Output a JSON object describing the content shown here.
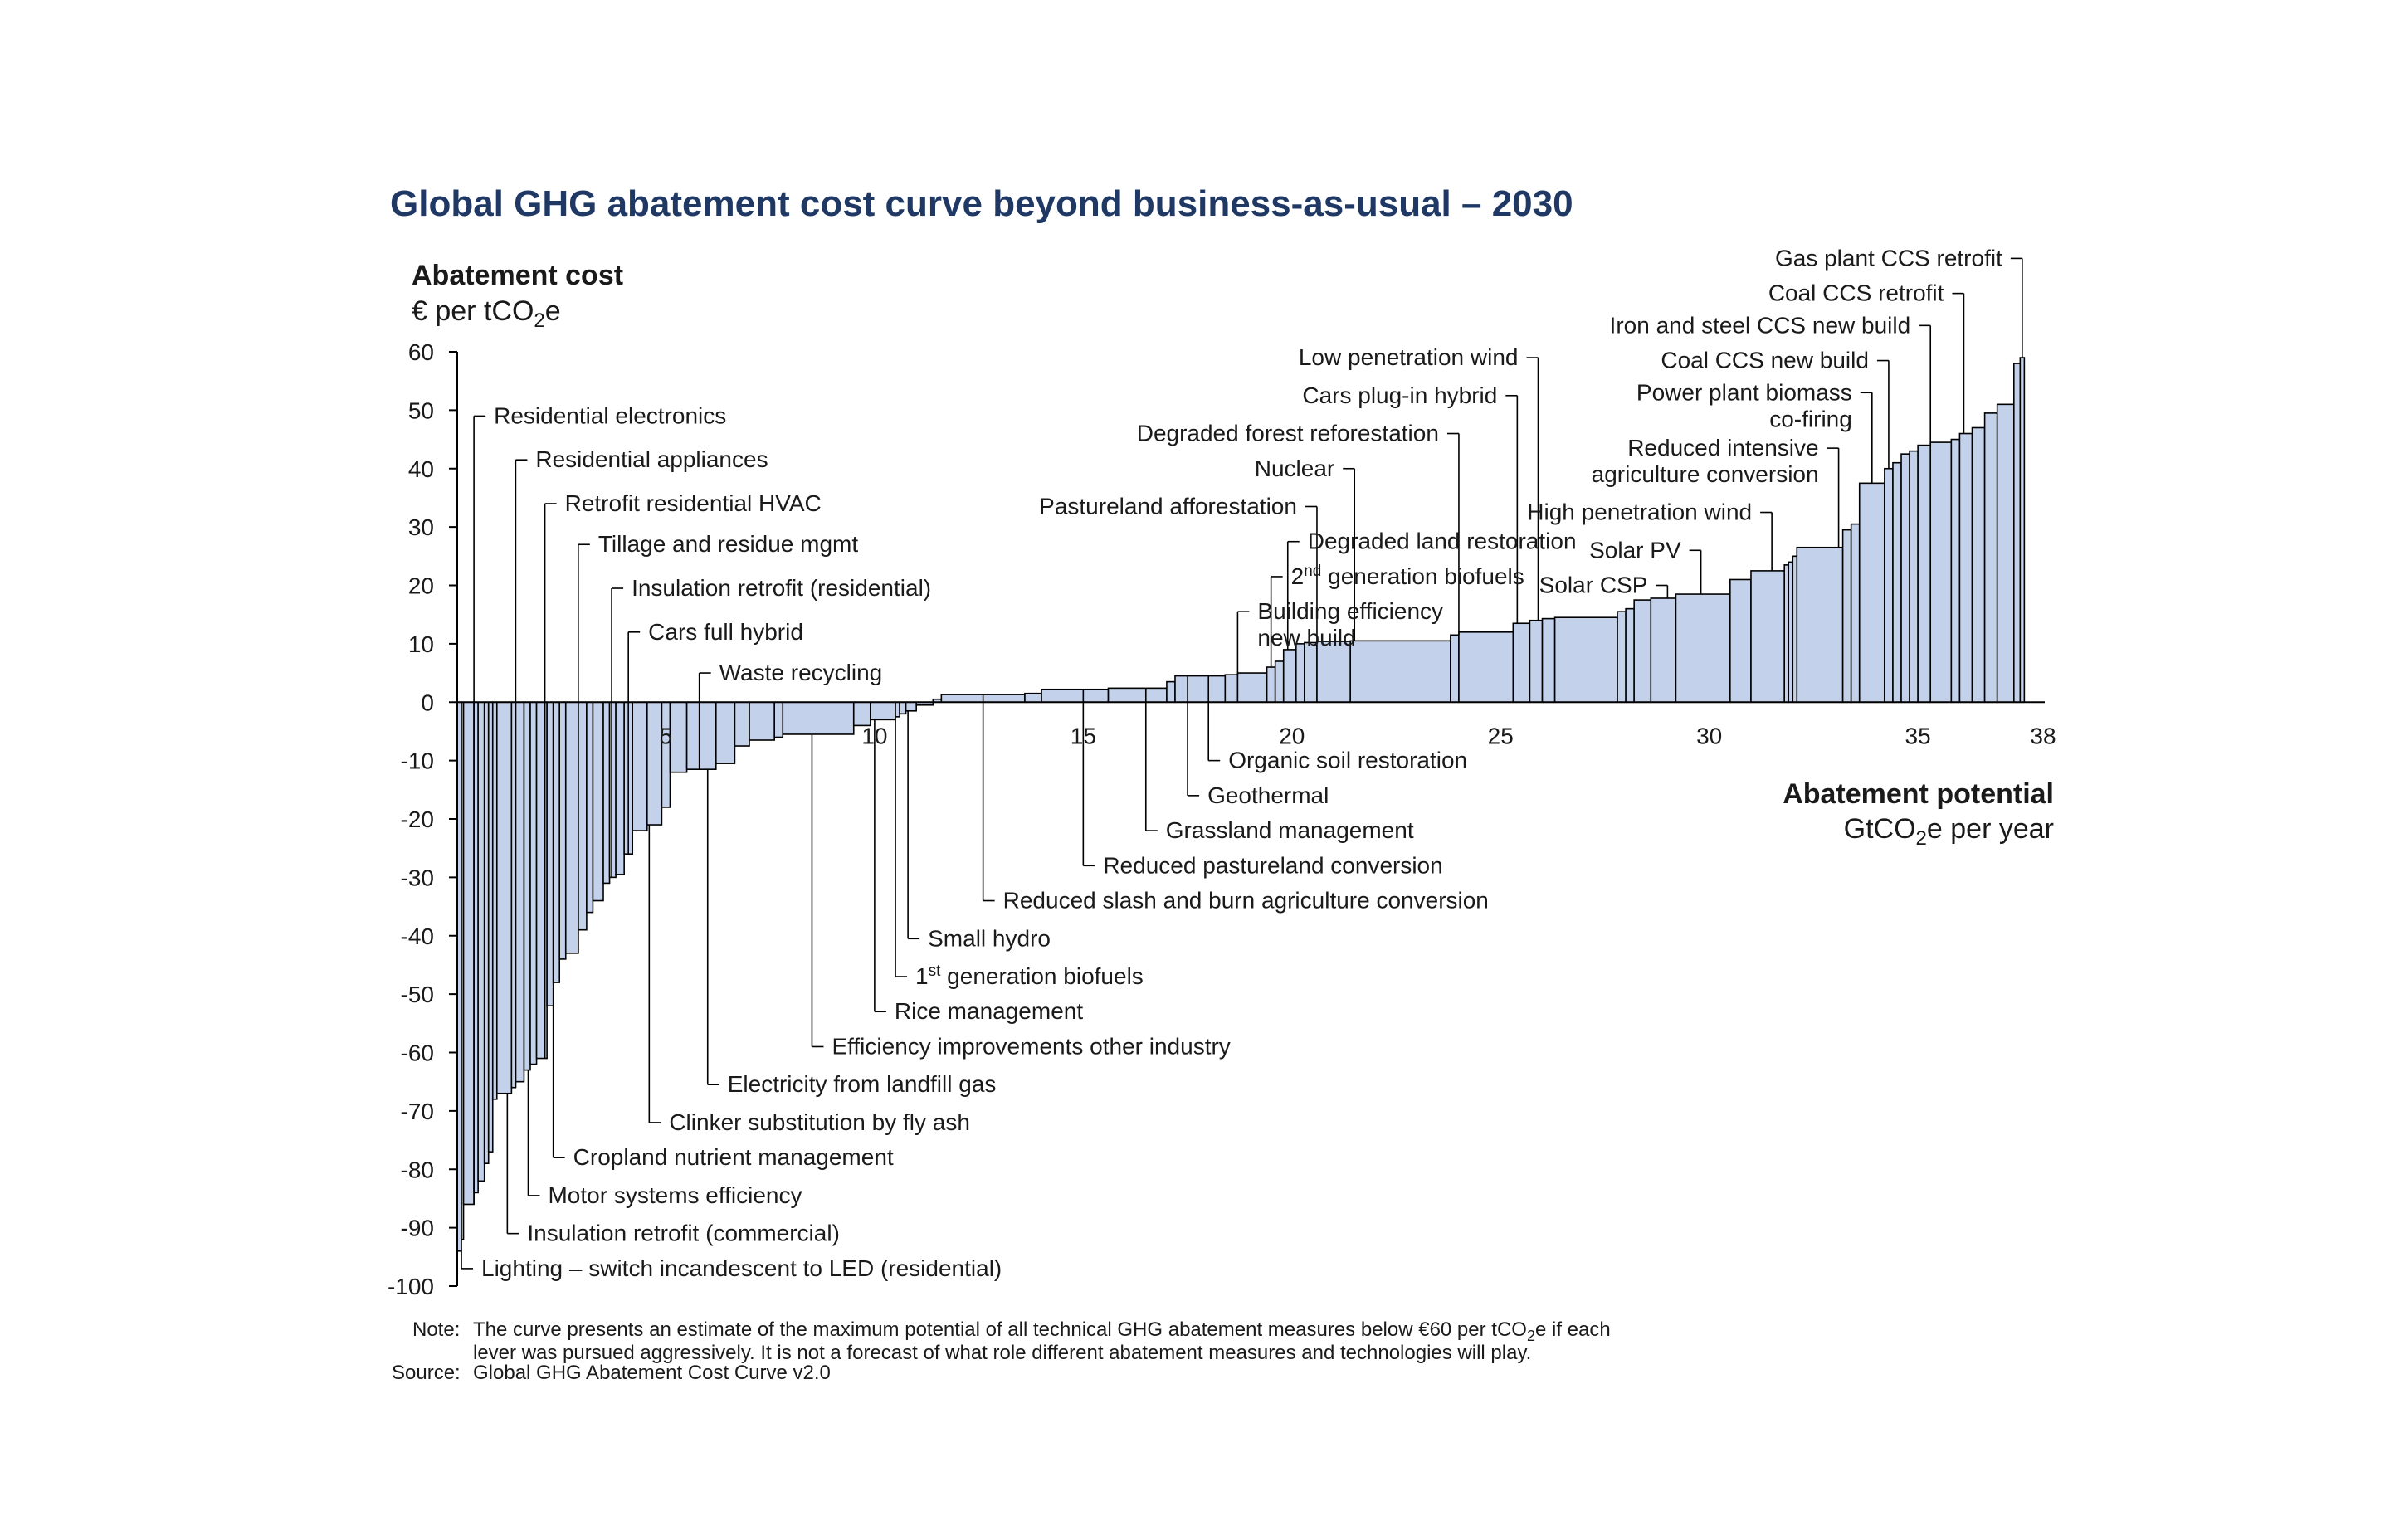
{
  "title": "Global GHG abatement cost curve beyond business-as-usual – 2030",
  "colors": {
    "title": "#1f3864",
    "bar_fill": "#c4d1ea",
    "bar_stroke": "#000000"
  },
  "chart_data": {
    "type": "bar",
    "chart_variant": "marginal abatement cost curve (variable-width bars)",
    "y_axis": {
      "label_bold": "Abatement cost",
      "unit_prefix": "€ per tCO",
      "unit_sub": "2",
      "unit_suffix": "e",
      "ylim": [
        -100,
        60
      ],
      "ticks": [
        60,
        50,
        40,
        30,
        20,
        10,
        0,
        -10,
        -20,
        -30,
        -40,
        -50,
        -60,
        -70,
        -80,
        -90,
        -100
      ]
    },
    "x_axis": {
      "label_bold": "Abatement potential",
      "unit_prefix": "GtCO",
      "unit_sub": "2",
      "unit_suffix": "e per year",
      "xlim": [
        0,
        38
      ],
      "ticks": [
        5,
        10,
        15,
        20,
        25,
        30,
        35,
        38
      ]
    },
    "grid": false,
    "legend": "none",
    "bars": [
      {
        "x0": 0.0,
        "x1": 0.1,
        "y": -94
      },
      {
        "x0": 0.1,
        "x1": 0.15,
        "y": -92
      },
      {
        "x0": 0.15,
        "x1": 0.4,
        "y": -86
      },
      {
        "x0": 0.4,
        "x1": 0.5,
        "y": -84
      },
      {
        "x0": 0.5,
        "x1": 0.65,
        "y": -82
      },
      {
        "x0": 0.65,
        "x1": 0.75,
        "y": -79
      },
      {
        "x0": 0.75,
        "x1": 0.85,
        "y": -77
      },
      {
        "x0": 0.85,
        "x1": 0.95,
        "y": -68
      },
      {
        "x0": 0.95,
        "x1": 1.3,
        "y": -67
      },
      {
        "x0": 1.3,
        "x1": 1.4,
        "y": -66
      },
      {
        "x0": 1.4,
        "x1": 1.6,
        "y": -65
      },
      {
        "x0": 1.6,
        "x1": 1.75,
        "y": -63
      },
      {
        "x0": 1.75,
        "x1": 1.9,
        "y": -62
      },
      {
        "x0": 1.9,
        "x1": 2.15,
        "y": -61
      },
      {
        "x0": 2.15,
        "x1": 2.3,
        "y": -52
      },
      {
        "x0": 2.3,
        "x1": 2.45,
        "y": -48
      },
      {
        "x0": 2.45,
        "x1": 2.6,
        "y": -44
      },
      {
        "x0": 2.6,
        "x1": 2.9,
        "y": -43
      },
      {
        "x0": 2.9,
        "x1": 3.1,
        "y": -39
      },
      {
        "x0": 3.1,
        "x1": 3.25,
        "y": -36
      },
      {
        "x0": 3.25,
        "x1": 3.5,
        "y": -34
      },
      {
        "x0": 3.5,
        "x1": 3.65,
        "y": -31
      },
      {
        "x0": 3.65,
        "x1": 3.8,
        "y": -30
      },
      {
        "x0": 3.8,
        "x1": 4.0,
        "y": -29.5
      },
      {
        "x0": 4.0,
        "x1": 4.2,
        "y": -26
      },
      {
        "x0": 4.2,
        "x1": 4.55,
        "y": -22
      },
      {
        "x0": 4.55,
        "x1": 4.9,
        "y": -21
      },
      {
        "x0": 4.9,
        "x1": 5.1,
        "y": -18
      },
      {
        "x0": 5.1,
        "x1": 5.5,
        "y": -12
      },
      {
        "x0": 5.5,
        "x1": 6.2,
        "y": -11.5
      },
      {
        "x0": 6.2,
        "x1": 6.65,
        "y": -10.5
      },
      {
        "x0": 6.65,
        "x1": 7.0,
        "y": -7.5
      },
      {
        "x0": 7.0,
        "x1": 7.6,
        "y": -6.5
      },
      {
        "x0": 7.6,
        "x1": 7.8,
        "y": -6
      },
      {
        "x0": 7.8,
        "x1": 9.5,
        "y": -5.5
      },
      {
        "x0": 9.5,
        "x1": 9.9,
        "y": -4
      },
      {
        "x0": 9.9,
        "x1": 10.5,
        "y": -3
      },
      {
        "x0": 10.5,
        "x1": 10.6,
        "y": -2.5
      },
      {
        "x0": 10.6,
        "x1": 10.75,
        "y": -2
      },
      {
        "x0": 10.75,
        "x1": 11.0,
        "y": -1.5
      },
      {
        "x0": 11.0,
        "x1": 11.4,
        "y": -0.5
      },
      {
        "x0": 11.4,
        "x1": 11.6,
        "y": 0.5
      },
      {
        "x0": 11.6,
        "x1": 13.6,
        "y": 1.3
      },
      {
        "x0": 13.6,
        "x1": 14.0,
        "y": 1.5
      },
      {
        "x0": 14.0,
        "x1": 15.6,
        "y": 2.2
      },
      {
        "x0": 15.6,
        "x1": 17.0,
        "y": 2.4
      },
      {
        "x0": 17.0,
        "x1": 17.2,
        "y": 3.5
      },
      {
        "x0": 17.2,
        "x1": 18.4,
        "y": 4.5
      },
      {
        "x0": 18.4,
        "x1": 18.7,
        "y": 4.7
      },
      {
        "x0": 18.7,
        "x1": 19.4,
        "y": 5
      },
      {
        "x0": 19.4,
        "x1": 19.6,
        "y": 6
      },
      {
        "x0": 19.6,
        "x1": 19.8,
        "y": 7
      },
      {
        "x0": 19.8,
        "x1": 20.1,
        "y": 9
      },
      {
        "x0": 20.1,
        "x1": 20.3,
        "y": 10
      },
      {
        "x0": 20.3,
        "x1": 20.6,
        "y": 10.2
      },
      {
        "x0": 20.6,
        "x1": 21.4,
        "y": 10.4
      },
      {
        "x0": 21.4,
        "x1": 23.8,
        "y": 10.5
      },
      {
        "x0": 23.8,
        "x1": 24.0,
        "y": 11.5
      },
      {
        "x0": 24.0,
        "x1": 25.3,
        "y": 12
      },
      {
        "x0": 25.3,
        "x1": 25.7,
        "y": 13.5
      },
      {
        "x0": 25.7,
        "x1": 26.0,
        "y": 14
      },
      {
        "x0": 26.0,
        "x1": 26.3,
        "y": 14.3
      },
      {
        "x0": 26.3,
        "x1": 27.8,
        "y": 14.5
      },
      {
        "x0": 27.8,
        "x1": 28.0,
        "y": 15.5
      },
      {
        "x0": 28.0,
        "x1": 28.2,
        "y": 16
      },
      {
        "x0": 28.2,
        "x1": 28.6,
        "y": 17.5
      },
      {
        "x0": 28.6,
        "x1": 29.2,
        "y": 17.8
      },
      {
        "x0": 29.2,
        "x1": 30.5,
        "y": 18.5
      },
      {
        "x0": 30.5,
        "x1": 31.0,
        "y": 21
      },
      {
        "x0": 31.0,
        "x1": 31.8,
        "y": 22.5
      },
      {
        "x0": 31.8,
        "x1": 31.9,
        "y": 23.5
      },
      {
        "x0": 31.9,
        "x1": 32.0,
        "y": 24
      },
      {
        "x0": 32.0,
        "x1": 32.1,
        "y": 25
      },
      {
        "x0": 32.1,
        "x1": 33.2,
        "y": 26.5
      },
      {
        "x0": 33.2,
        "x1": 33.4,
        "y": 29.5
      },
      {
        "x0": 33.4,
        "x1": 33.6,
        "y": 30.5
      },
      {
        "x0": 33.6,
        "x1": 34.2,
        "y": 37.5
      },
      {
        "x0": 34.2,
        "x1": 34.4,
        "y": 40
      },
      {
        "x0": 34.4,
        "x1": 34.6,
        "y": 41
      },
      {
        "x0": 34.6,
        "x1": 34.8,
        "y": 42.5
      },
      {
        "x0": 34.8,
        "x1": 35.0,
        "y": 43
      },
      {
        "x0": 35.0,
        "x1": 35.3,
        "y": 44
      },
      {
        "x0": 35.3,
        "x1": 35.8,
        "y": 44.5
      },
      {
        "x0": 35.8,
        "x1": 36.0,
        "y": 45
      },
      {
        "x0": 36.0,
        "x1": 36.3,
        "y": 46
      },
      {
        "x0": 36.3,
        "x1": 36.6,
        "y": 47
      },
      {
        "x0": 36.6,
        "x1": 36.9,
        "y": 49.5
      },
      {
        "x0": 36.9,
        "x1": 37.3,
        "y": 51
      },
      {
        "x0": 37.3,
        "x1": 37.45,
        "y": 58
      },
      {
        "x0": 37.45,
        "x1": 37.55,
        "y": 59
      }
    ],
    "levers": [
      {
        "label": "Residential electronics",
        "x": 0.4,
        "label_y": 49
      },
      {
        "label": "Residential appliances",
        "x": 1.4,
        "label_y": 41.5
      },
      {
        "label": "Retrofit residential HVAC",
        "x": 2.1,
        "label_y": 34
      },
      {
        "label": "Tillage and residue mgmt",
        "x": 2.9,
        "label_y": 27
      },
      {
        "label": "Insulation retrofit (residential)",
        "x": 3.7,
        "label_y": 19.5
      },
      {
        "label": "Cars full hybrid",
        "x": 4.1,
        "label_y": 12
      },
      {
        "label": "Waste recycling",
        "x": 5.8,
        "label_y": 5
      },
      {
        "label": "Organic soil restoration",
        "x": 18.0,
        "label_y": -10
      },
      {
        "label": "Geothermal",
        "x": 17.5,
        "label_y": -16
      },
      {
        "label": "Grassland management",
        "x": 16.5,
        "label_y": -22
      },
      {
        "label": "Reduced pastureland conversion",
        "x": 15.0,
        "label_y": -28
      },
      {
        "label": "Reduced slash and burn agriculture conversion",
        "x": 12.6,
        "label_y": -34
      },
      {
        "label": "Small hydro",
        "x": 10.8,
        "label_y": -40.5
      },
      {
        "label": "generation biofuels",
        "sup": "st",
        "prefix": "1",
        "x": 10.5,
        "label_y": -47
      },
      {
        "label": "Rice management",
        "x": 10.0,
        "label_y": -53
      },
      {
        "label": "Efficiency improvements other industry",
        "x": 8.5,
        "label_y": -59
      },
      {
        "label": "Electricity from landfill gas",
        "x": 6.0,
        "label_y": -65.5
      },
      {
        "label": "Clinker substitution by fly ash",
        "x": 4.6,
        "label_y": -72
      },
      {
        "label": "Cropland nutrient management",
        "x": 2.3,
        "label_y": -78
      },
      {
        "label": "Motor systems efficiency",
        "x": 1.7,
        "label_y": -84.5
      },
      {
        "label": "Insulation retrofit (commercial)",
        "x": 1.2,
        "label_y": -91
      },
      {
        "label": "Lighting – switch incandescent to LED (residential)",
        "x": 0.1,
        "label_y": -97
      },
      {
        "label": "Low penetration wind",
        "x": 25.9,
        "label_y": 59
      },
      {
        "label": "Cars plug-in hybrid",
        "x": 25.4,
        "label_y": 52.5
      },
      {
        "label": "Degraded forest reforestation",
        "x": 24.0,
        "label_y": 46
      },
      {
        "label": "Nuclear",
        "x": 21.5,
        "label_y": 40
      },
      {
        "label": "Pastureland afforestation",
        "x": 20.6,
        "label_y": 33.5
      },
      {
        "label": "Degraded land restoration",
        "x": 19.9,
        "label_y": 27.5
      },
      {
        "label": "generation biofuels",
        "sup": "nd",
        "prefix": "2",
        "x": 19.5,
        "label_y": 21.5
      },
      {
        "label": "Building efficiency",
        "label2": "new build",
        "x": 18.7,
        "label_y": 15.5
      },
      {
        "label": "Gas plant CCS retrofit",
        "x": 37.5,
        "label_y": 76
      },
      {
        "label": "Coal CCS retrofit",
        "x": 36.1,
        "label_y": 70
      },
      {
        "label": "Iron and steel CCS new build",
        "x": 35.3,
        "label_y": 64.5
      },
      {
        "label": "Coal CCS new build",
        "x": 34.3,
        "label_y": 58.5
      },
      {
        "label": "Power plant biomass",
        "label2": "co-firing",
        "x": 33.9,
        "label_y": 53
      },
      {
        "label": "Reduced intensive",
        "label2": "agriculture conversion",
        "x": 33.1,
        "label_y": 43.5
      },
      {
        "label": "High penetration wind",
        "x": 31.5,
        "label_y": 32.5
      },
      {
        "label": "Solar PV",
        "x": 29.8,
        "label_y": 26
      },
      {
        "label": "Solar CSP",
        "x": 29.0,
        "label_y": 20
      }
    ]
  },
  "notes": {
    "note_prefix": "Note:",
    "note_line1_a": "The curve presents an estimate of the maximum potential of all technical GHG abatement measures below €60 per tCO",
    "note_line1_sub": "2",
    "note_line1_b": "e if each",
    "note_line2": "lever was pursued aggressively. It is not a forecast of what role different abatement measures and technologies will play.",
    "source_prefix": "Source:",
    "source_text": "Global GHG Abatement Cost Curve v2.0"
  }
}
